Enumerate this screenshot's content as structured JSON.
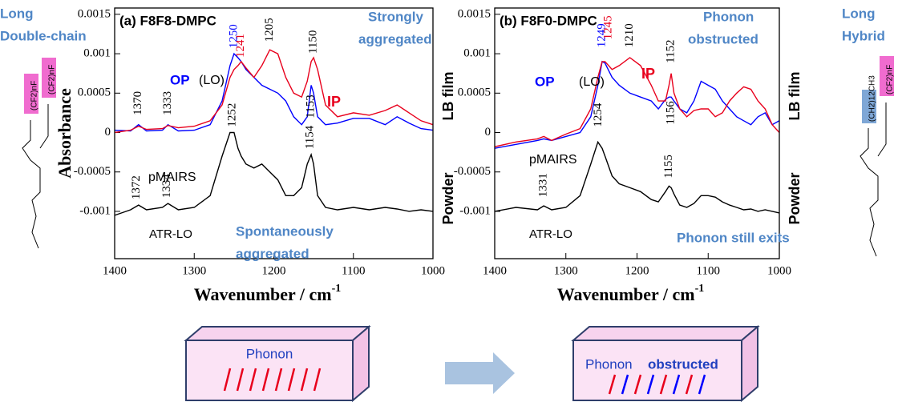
{
  "chart_data": [
    {
      "type": "line",
      "title": "(a) F8F8-DMPC",
      "ylabel": "Absorbance",
      "xlabel": "Wavenumber / cm",
      "xlabel_sup": "-1",
      "right_labels": [
        "LB film",
        "Powder"
      ],
      "xlim": [
        1400,
        1000
      ],
      "xticks": [
        1400,
        1300,
        1200,
        1100,
        1000
      ],
      "ylim": [
        -0.0016,
        0.00158
      ],
      "yticks": [
        0.0015,
        0.001,
        0.0005,
        0,
        -0.0005,
        -0.001
      ],
      "x": [
        1400,
        1380,
        1370,
        1360,
        1340,
        1333,
        1320,
        1300,
        1280,
        1265,
        1255,
        1250,
        1245,
        1241,
        1235,
        1225,
        1215,
        1205,
        1195,
        1185,
        1175,
        1165,
        1158,
        1153,
        1150,
        1145,
        1135,
        1120,
        1100,
        1080,
        1060,
        1045,
        1030,
        1015,
        1000
      ],
      "series": [
        {
          "name": "OP",
          "color": "#0000ff",
          "values": [
            3e-05,
            2e-05,
            0.0001,
            2e-05,
            3e-05,
            0.0001,
            2e-05,
            3e-05,
            0.0001,
            0.0004,
            0.00085,
            0.001,
            0.00095,
            0.0009,
            0.0008,
            0.0007,
            0.0006,
            0.00055,
            0.0005,
            0.0004,
            0.0002,
            0.0001,
            0.0002,
            0.0006,
            0.0005,
            0.0002,
            0.0001,
            0.00012,
            0.00018,
            0.00018,
            0.0001,
            0.0002,
            0.00012,
            5e-05,
            3e-05
          ]
        },
        {
          "name": "IP",
          "color": "#e8001c",
          "values": [
            0.0,
            3e-05,
            8e-05,
            4e-05,
            5e-05,
            9e-05,
            6e-05,
            8e-05,
            0.00015,
            0.00035,
            0.0007,
            0.0008,
            0.00085,
            0.0009,
            0.00082,
            0.0007,
            0.00085,
            0.00105,
            0.001,
            0.0007,
            0.0005,
            0.00045,
            0.00065,
            0.0009,
            0.00095,
            0.0008,
            0.00035,
            0.0002,
            0.00025,
            0.00022,
            0.00028,
            0.00035,
            0.00025,
            0.00015,
            0.0001
          ]
        },
        {
          "name": "ATR-LO",
          "color": "#000000",
          "values": [
            -0.00105,
            -0.00098,
            -0.00092,
            -0.00098,
            -0.00095,
            -0.0009,
            -0.00098,
            -0.00095,
            -0.0008,
            -0.0003,
            0.0,
            0.0,
            -0.0002,
            -0.0003,
            -0.0004,
            -0.00045,
            -0.0004,
            -0.0005,
            -0.0006,
            -0.0008,
            -0.0008,
            -0.0007,
            -0.0004,
            -0.00028,
            -0.0004,
            -0.0008,
            -0.00095,
            -0.00098,
            -0.00095,
            -0.00098,
            -0.00095,
            -0.00097,
            -0.001,
            -0.00098,
            -0.001
          ]
        }
      ],
      "peak_labels": [
        {
          "label": "1370",
          "x": 1370,
          "y": 0.00022,
          "color": "#000000"
        },
        {
          "label": "1333",
          "x": 1333,
          "y": 0.00022,
          "color": "#000000"
        },
        {
          "label": "1250",
          "x": 1250,
          "y": 0.00107,
          "color": "#0000ff"
        },
        {
          "label": "1241",
          "x": 1241,
          "y": 0.00095,
          "color": "#e8001c"
        },
        {
          "label": "1205",
          "x": 1205,
          "y": 0.00115,
          "color": "#000000"
        },
        {
          "label": "1150",
          "x": 1150,
          "y": 0.001,
          "color": "#000000"
        },
        {
          "label": "1153",
          "x": 1153,
          "y": 0.00018,
          "color": "#000000"
        },
        {
          "label": "1252",
          "x": 1252,
          "y": 7e-05,
          "color": "#000000"
        },
        {
          "label": "1372",
          "x": 1372,
          "y": -0.00085,
          "color": "#000000"
        },
        {
          "label": "1334",
          "x": 1334,
          "y": -0.00083,
          "color": "#000000"
        },
        {
          "label": "1154",
          "x": 1154,
          "y": -0.00021,
          "color": "#000000"
        }
      ],
      "annotations": [
        "pMAIRS",
        "(LO)",
        "Strongly",
        "aggregated",
        "Spontaneously",
        "aggregated"
      ]
    },
    {
      "type": "line",
      "title": "(b) F8F0-DMPC",
      "xlabel": "Wavenumber / cm",
      "xlabel_sup": "-1",
      "right_labels": [
        "LB film",
        "Powder"
      ],
      "xlim": [
        1400,
        1000
      ],
      "xticks": [
        1400,
        1300,
        1200,
        1100,
        1000
      ],
      "ylim": [
        -0.0016,
        0.00158
      ],
      "yticks": [
        0.0015,
        0.001,
        0.0005,
        0,
        -0.0005,
        -0.001
      ],
      "x": [
        1400,
        1370,
        1340,
        1331,
        1320,
        1300,
        1280,
        1265,
        1255,
        1249,
        1245,
        1235,
        1225,
        1210,
        1195,
        1180,
        1170,
        1160,
        1155,
        1152,
        1148,
        1140,
        1130,
        1120,
        1110,
        1100,
        1090,
        1080,
        1070,
        1060,
        1050,
        1040,
        1030,
        1020,
        1010,
        1000
      ],
      "series": [
        {
          "name": "OP",
          "color": "#0000ff",
          "values": [
            -0.0002,
            -0.00015,
            -0.0001,
            -8e-05,
            -0.0001,
            -5e-05,
            0.0,
            0.0002,
            0.0006,
            0.0009,
            0.00088,
            0.0007,
            0.0006,
            0.0005,
            0.00045,
            0.0004,
            0.0003,
            0.00042,
            0.00045,
            0.00045,
            0.0004,
            0.0003,
            0.00025,
            0.0004,
            0.00065,
            0.0006,
            0.00055,
            0.0004,
            0.0003,
            0.0002,
            0.00015,
            0.0001,
            0.0002,
            0.00025,
            0.0001,
            0.00015
          ]
        },
        {
          "name": "IP",
          "color": "#e8001c",
          "values": [
            -0.00018,
            -0.00012,
            -8e-05,
            -5e-05,
            -0.0001,
            -2e-05,
            5e-05,
            0.0003,
            0.0007,
            0.0009,
            0.0009,
            0.0008,
            0.00085,
            0.00095,
            0.00085,
            0.0006,
            0.0004,
            0.0004,
            0.0006,
            0.00075,
            0.0005,
            0.0003,
            0.0002,
            0.00028,
            0.0003,
            0.0003,
            0.0002,
            0.00025,
            0.0004,
            0.0005,
            0.00058,
            0.00055,
            0.0004,
            0.0003,
            0.0001,
            0.0
          ]
        },
        {
          "name": "ATR-LO",
          "color": "#000000",
          "values": [
            -0.001,
            -0.00095,
            -0.00098,
            -0.00093,
            -0.00098,
            -0.00095,
            -0.0008,
            -0.0004,
            -0.00012,
            -0.0002,
            -0.0003,
            -0.00055,
            -0.00065,
            -0.0007,
            -0.00075,
            -0.00085,
            -0.00088,
            -0.00075,
            -0.00068,
            -0.0007,
            -0.00078,
            -0.00092,
            -0.00095,
            -0.0009,
            -0.0008,
            -0.0008,
            -0.00082,
            -0.00088,
            -0.00092,
            -0.00095,
            -0.00098,
            -0.00097,
            -0.001,
            -0.00098,
            -0.001,
            -0.00102
          ]
        }
      ],
      "peak_labels": [
        {
          "label": "1249",
          "x": 1249,
          "y": 0.00108,
          "color": "#0000ff"
        },
        {
          "label": "1245",
          "x": 1240,
          "y": 0.00118,
          "color": "#e8001c"
        },
        {
          "label": "1210",
          "x": 1210,
          "y": 0.00108,
          "color": "#000000"
        },
        {
          "label": "1152",
          "x": 1152,
          "y": 0.00088,
          "color": "#000000"
        },
        {
          "label": "1156",
          "x": 1152,
          "y": 0.0001,
          "color": "#000000"
        },
        {
          "label": "1254",
          "x": 1254,
          "y": 7e-05,
          "color": "#000000"
        },
        {
          "label": "1331",
          "x": 1331,
          "y": -0.00082,
          "color": "#000000"
        },
        {
          "label": "1155",
          "x": 1155,
          "y": -0.00058,
          "color": "#000000"
        }
      ],
      "annotations": [
        "pMAIRS",
        "(LO)",
        "Phonon",
        "obstructed",
        "Phonon still exits"
      ]
    }
  ],
  "left_panel": {
    "title": [
      "Long",
      "Double-chain"
    ],
    "chains": [
      "(CF2)nF",
      "(CF2)nF"
    ]
  },
  "right_panel": {
    "title": [
      "Long",
      "Hybrid"
    ],
    "chains": [
      "(CH2)12CH3",
      "(CF2)nF"
    ]
  },
  "diagrams": {
    "left": "Phonon",
    "right": [
      "Phonon",
      "obstructed"
    ]
  }
}
